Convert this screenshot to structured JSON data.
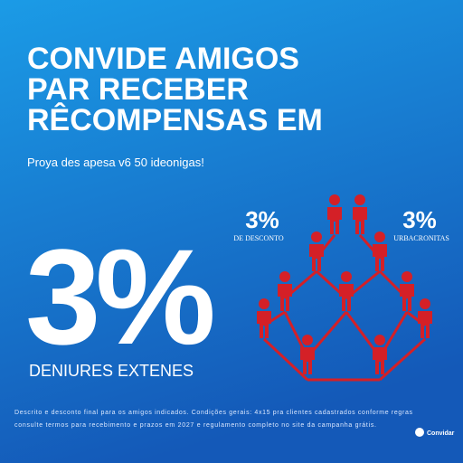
{
  "header": {
    "title_lines": [
      "CONVIDE AMIGOS",
      "PAR RECEBER",
      "RÊCOMPENSAS EM"
    ],
    "subtitle": "Proya des apesa v6 50 ideonigas!"
  },
  "hero": {
    "big_value": "3%",
    "caption": "DENIURES EXTENES"
  },
  "network": {
    "left": {
      "value": "3%",
      "label": "DE DESCONTO"
    },
    "right": {
      "value": "3%",
      "label": "URBACRONITAS"
    }
  },
  "footer": {
    "lines": [
      "Descrito e desconto final para os amigos indicados. Condições gerais: 4x15 pra clientes cadastrados conforme regras",
      "consulte termos para recebimento e prazos em 2027 e regulamento completo no site da campanha grátis."
    ],
    "logo": "Convidar"
  }
}
